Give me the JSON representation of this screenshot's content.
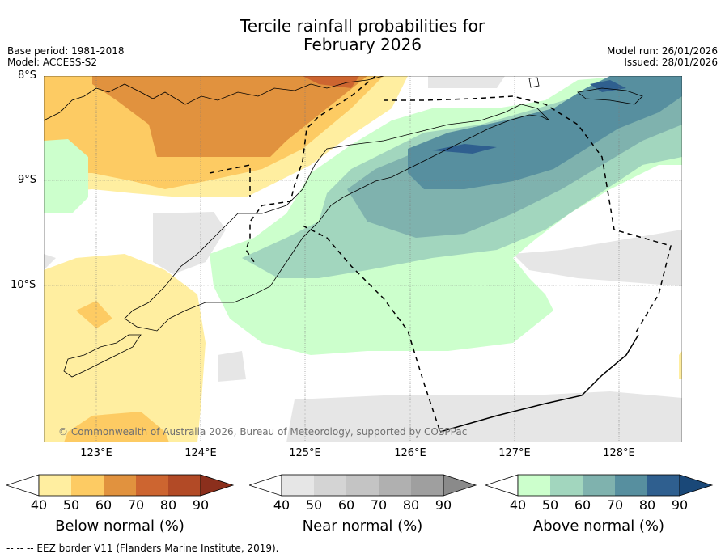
{
  "title_line1": "Tercile rainfall probabilities for",
  "title_line2": "February 2026",
  "meta_left": [
    "Base period: 1981-2018",
    "Model: ACCESS-S2"
  ],
  "meta_right": [
    "Model run: 26/01/2026",
    "Issued: 28/01/2026"
  ],
  "lat_labels": [
    "8°S",
    "9°S",
    "10°S"
  ],
  "lon_labels": [
    "123°E",
    "124°E",
    "125°E",
    "126°E",
    "127°E",
    "128°E"
  ],
  "copyright": "© Commonwealth of Australia 2026, Bureau of Meteorology, supported by COSPPac",
  "colorbars": [
    {
      "label": "Below normal (%)",
      "ticks": [
        "40",
        "50",
        "60",
        "70",
        "80",
        "90"
      ],
      "colors": [
        "#ffeea0",
        "#fdcb63",
        "#e1923e",
        "#cd6530",
        "#b24a26",
        "#8b2f1c"
      ]
    },
    {
      "label": "Near normal (%)",
      "ticks": [
        "40",
        "50",
        "60",
        "70",
        "80",
        "90"
      ],
      "colors": [
        "#e6e6e6",
        "#d4d4d4",
        "#c4c4c4",
        "#b0b0b0",
        "#9f9f9f",
        "#8a8a8a"
      ]
    },
    {
      "label": "Above normal (%)",
      "ticks": [
        "40",
        "50",
        "60",
        "70",
        "80",
        "90"
      ],
      "colors": [
        "#ccffcc",
        "#a2d6be",
        "#7fb2ae",
        "#578f9f",
        "#2f5f8f",
        "#1a4878"
      ]
    }
  ],
  "footnote": "--  --  -- EEZ border V11 (Flanders Marine Institute, 2019).",
  "colors": {
    "below50": "#ffeea0",
    "below60": "#fdcb63",
    "below70": "#e1923e",
    "below80": "#cd6530",
    "near50": "#e6e6e6",
    "above50": "#ccffcc",
    "above60": "#a2d6be",
    "above70": "#7fb2ae",
    "above80": "#578f9f",
    "above90": "#2f5f8f"
  }
}
